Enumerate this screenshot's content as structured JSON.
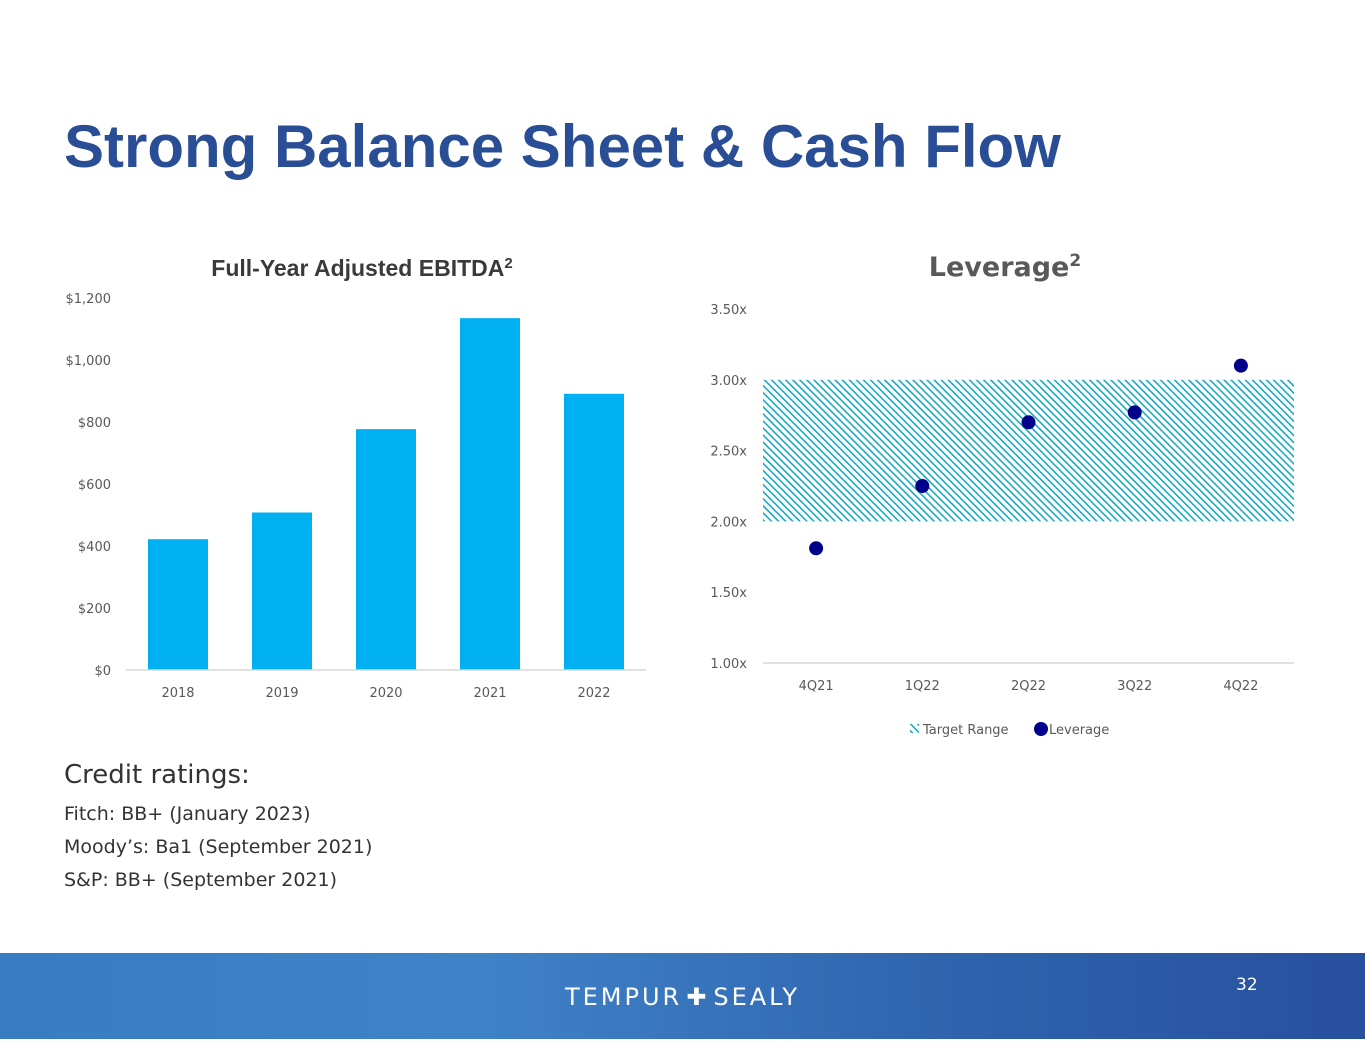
{
  "page": {
    "title": "Strong Balance Sheet & Cash Flow",
    "page_number": "32"
  },
  "footer": {
    "brand_left": "TEMPUR",
    "brand_cross": "✚",
    "brand_right": "SEALY"
  },
  "ratings": {
    "heading": "Credit ratings:",
    "items": [
      "Fitch: BB+  (January 2023)",
      "Moody’s: Ba1 (September 2021)",
      "S&P: BB+ (September 2021)"
    ]
  },
  "colors": {
    "title": "#2a4e96",
    "bar": "#00b0f0",
    "target_range": "#1aa7c4",
    "leverage_point": "#00008b"
  },
  "chart_data": [
    {
      "type": "bar",
      "title": "Full-Year Adjusted EBITDA",
      "title_superscript": "2",
      "categories": [
        "2018",
        "2019",
        "2020",
        "2021",
        "2022"
      ],
      "values": [
        422,
        508,
        777,
        1135,
        891
      ],
      "ylim": [
        0,
        1200
      ],
      "yticks": [
        "$0",
        "$200",
        "$400",
        "$600",
        "$800",
        "$1,000",
        "$1,200"
      ],
      "ytick_values": [
        0,
        200,
        400,
        600,
        800,
        1000,
        1200
      ],
      "grid": false
    },
    {
      "type": "scatter",
      "title": "Leverage",
      "title_superscript": "2",
      "categories": [
        "4Q21",
        "1Q22",
        "2Q22",
        "3Q22",
        "4Q22"
      ],
      "series": [
        {
          "name": "Leverage",
          "values": [
            1.81,
            2.25,
            2.7,
            2.77,
            3.1
          ]
        }
      ],
      "band": {
        "name": "Target Range",
        "low": 2.0,
        "high": 3.0
      },
      "ylim": [
        1.0,
        3.5
      ],
      "yticks": [
        "1.00x",
        "1.50x",
        "2.00x",
        "2.50x",
        "3.00x",
        "3.50x"
      ],
      "ytick_values": [
        1.0,
        1.5,
        2.0,
        2.5,
        3.0,
        3.5
      ],
      "legend": [
        "Target Range",
        "Leverage"
      ],
      "legend_position": "bottom",
      "grid": false
    }
  ]
}
